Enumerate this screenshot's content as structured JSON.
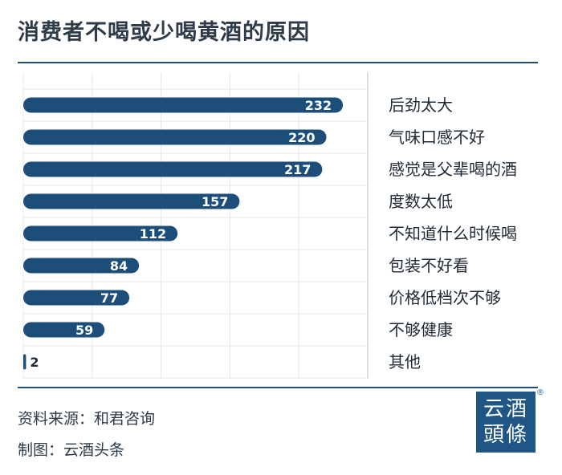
{
  "title": "消费者不喝或少喝黄酒的原因",
  "chart_data": {
    "type": "bar",
    "orientation": "horizontal",
    "bar_color": "#1d4e7a",
    "categories": [
      "后劲太大",
      "气味口感不好",
      "感觉是父辈喝的酒",
      "度数太低",
      "不知道什么时候喝",
      "包装不好看",
      "价格低档次不够",
      "不够健康",
      "其他"
    ],
    "values": [
      232,
      220,
      217,
      157,
      112,
      84,
      77,
      59,
      2
    ],
    "xlim": [
      0,
      250
    ],
    "grid": true
  },
  "footer": {
    "source": "资料来源：和君咨询",
    "made_by": "制图：云酒头条"
  },
  "logo": {
    "line1": "云酒",
    "line2": "頭條",
    "registered_mark": "®"
  }
}
